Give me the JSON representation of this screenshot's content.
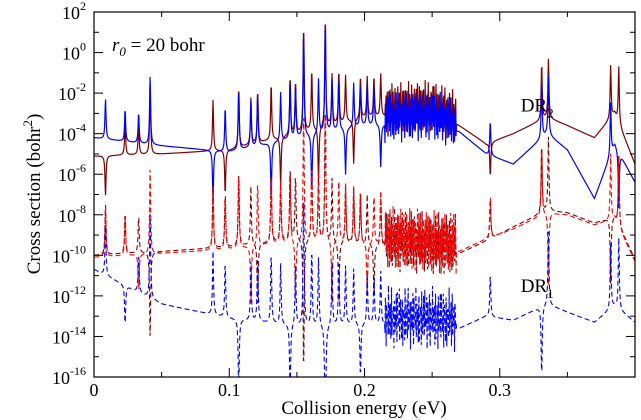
{
  "chart_data": {
    "type": "line",
    "xlabel": "Collision energy (eV)",
    "ylabel": "Cross section (bohr",
    "ylabel_sup": "2",
    "ylabel_close": ")",
    "annotation": {
      "var": "r",
      "sub": "0",
      "rest": " = 20 bohr"
    },
    "scale": "log",
    "xlim": [
      0,
      0.4
    ],
    "ylim_exponents": [
      -16,
      2
    ],
    "x_ticks": [
      0,
      0.1,
      0.2,
      0.3
    ],
    "x_tick_labels": [
      "0",
      "0.1",
      "0.2",
      "0.3"
    ],
    "y_tick_exponents": [
      -16,
      -14,
      -12,
      -10,
      -8,
      -6,
      -4,
      -2,
      0,
      2
    ],
    "y_tick_base": "10",
    "series_labels": [
      {
        "main": "DR",
        "sub": "2",
        "x": 0.3155,
        "y_exp": -2.9
      },
      {
        "main": "DR",
        "sub": "1",
        "x": 0.3155,
        "y_exp": -11.8
      }
    ],
    "series": [
      {
        "id": "dr2-solid-darkred",
        "color": "#800000",
        "dash": "solid",
        "base": [
          [
            0,
            -5.1
          ],
          [
            0.05,
            -5.0
          ],
          [
            0.1,
            -4.8
          ],
          [
            0.15,
            -4.0
          ],
          [
            0.2,
            -3.2
          ],
          [
            0.25,
            -3.0
          ],
          [
            0.27,
            -3.6
          ],
          [
            0.29,
            -4.5
          ],
          [
            0.31,
            -4.0
          ],
          [
            0.335,
            -3.2
          ],
          [
            0.35,
            -3.6
          ],
          [
            0.37,
            -4.2
          ],
          [
            0.385,
            -3.0
          ],
          [
            0.4,
            -5.5
          ]
        ]
      },
      {
        "id": "dr2-solid-blue",
        "color": "#0000ff",
        "dash": "solid",
        "base": [
          [
            0,
            -4.2
          ],
          [
            0.05,
            -4.6
          ],
          [
            0.1,
            -4.9
          ],
          [
            0.15,
            -4.2
          ],
          [
            0.2,
            -3.6
          ],
          [
            0.25,
            -3.5
          ],
          [
            0.27,
            -3.9
          ],
          [
            0.29,
            -5.0
          ],
          [
            0.31,
            -5.5
          ],
          [
            0.335,
            -4.0
          ],
          [
            0.35,
            -4.8
          ],
          [
            0.37,
            -7.2
          ],
          [
            0.385,
            -4.5
          ],
          [
            0.4,
            -6.4
          ]
        ]
      },
      {
        "id": "dr1-dashed-darkred",
        "color": "#800000",
        "dash": "dashed",
        "base": [
          [
            0,
            -10.0
          ],
          [
            0.05,
            -9.8
          ],
          [
            0.1,
            -9.6
          ],
          [
            0.15,
            -9.2
          ],
          [
            0.2,
            -9.5
          ],
          [
            0.25,
            -9.8
          ],
          [
            0.27,
            -9.9
          ],
          [
            0.29,
            -9.3
          ],
          [
            0.31,
            -8.6
          ],
          [
            0.335,
            -7.8
          ],
          [
            0.35,
            -7.9
          ],
          [
            0.37,
            -8.4
          ],
          [
            0.385,
            -8.1
          ],
          [
            0.4,
            -10.2
          ]
        ]
      },
      {
        "id": "dr1-dashed-red",
        "color": "#ff0000",
        "dash": "dashed",
        "base": [
          [
            0,
            -10.1
          ],
          [
            0.05,
            -9.9
          ],
          [
            0.1,
            -9.7
          ],
          [
            0.15,
            -9.3
          ],
          [
            0.2,
            -9.4
          ],
          [
            0.25,
            -9.7
          ],
          [
            0.27,
            -9.8
          ],
          [
            0.29,
            -9.2
          ],
          [
            0.31,
            -8.7
          ],
          [
            0.335,
            -7.9
          ],
          [
            0.35,
            -8.0
          ],
          [
            0.37,
            -8.5
          ],
          [
            0.385,
            -8.2
          ],
          [
            0.4,
            -10.3
          ]
        ]
      },
      {
        "id": "dr1-dashed-blue",
        "color": "#0000ff",
        "dash": "dashed",
        "base": [
          [
            0,
            -10.7
          ],
          [
            0.05,
            -12.4
          ],
          [
            0.1,
            -13.1
          ],
          [
            0.15,
            -13.5
          ],
          [
            0.2,
            -13.4
          ],
          [
            0.25,
            -13.5
          ],
          [
            0.27,
            -13.6
          ],
          [
            0.29,
            -13.0
          ],
          [
            0.31,
            -13.2
          ],
          [
            0.335,
            -12.4
          ],
          [
            0.35,
            -12.8
          ],
          [
            0.37,
            -13.3
          ],
          [
            0.385,
            -12.5
          ],
          [
            0.4,
            -13.3
          ]
        ]
      }
    ],
    "resonances": [
      {
        "x": 0.0085,
        "h": 2.0
      },
      {
        "x": 0.023,
        "h": 1.6
      },
      {
        "x": 0.033,
        "h": 1.5
      },
      {
        "x": 0.0415,
        "h": 3.4
      },
      {
        "x": 0.088,
        "h": 2.5
      },
      {
        "x": 0.097,
        "h": 2.2
      },
      {
        "x": 0.107,
        "h": 3.0
      },
      {
        "x": 0.116,
        "h": 2.3
      },
      {
        "x": 0.121,
        "h": 2.6
      },
      {
        "x": 0.131,
        "h": 2.8
      },
      {
        "x": 0.138,
        "h": 2.4
      },
      {
        "x": 0.145,
        "h": 2.9
      },
      {
        "x": 0.149,
        "h": 2.6
      },
      {
        "x": 0.155,
        "h": 5.3
      },
      {
        "x": 0.161,
        "h": 3.0
      },
      {
        "x": 0.166,
        "h": 2.7
      },
      {
        "x": 0.171,
        "h": 5.5
      },
      {
        "x": 0.176,
        "h": 2.5
      },
      {
        "x": 0.181,
        "h": 2.6
      },
      {
        "x": 0.186,
        "h": 2.3
      },
      {
        "x": 0.192,
        "h": 2.2
      },
      {
        "x": 0.197,
        "h": 2.1
      },
      {
        "x": 0.202,
        "h": 2.0
      },
      {
        "x": 0.207,
        "h": 2.0
      },
      {
        "x": 0.212,
        "h": 2.1
      },
      {
        "x": 0.293,
        "h": 1.7
      },
      {
        "x": 0.331,
        "h": 2.8
      },
      {
        "x": 0.336,
        "h": 2.9
      },
      {
        "x": 0.382,
        "h": 2.6
      },
      {
        "x": 0.388,
        "h": 2.8
      }
    ],
    "dense_region": [
      0.215,
      0.268
    ]
  }
}
